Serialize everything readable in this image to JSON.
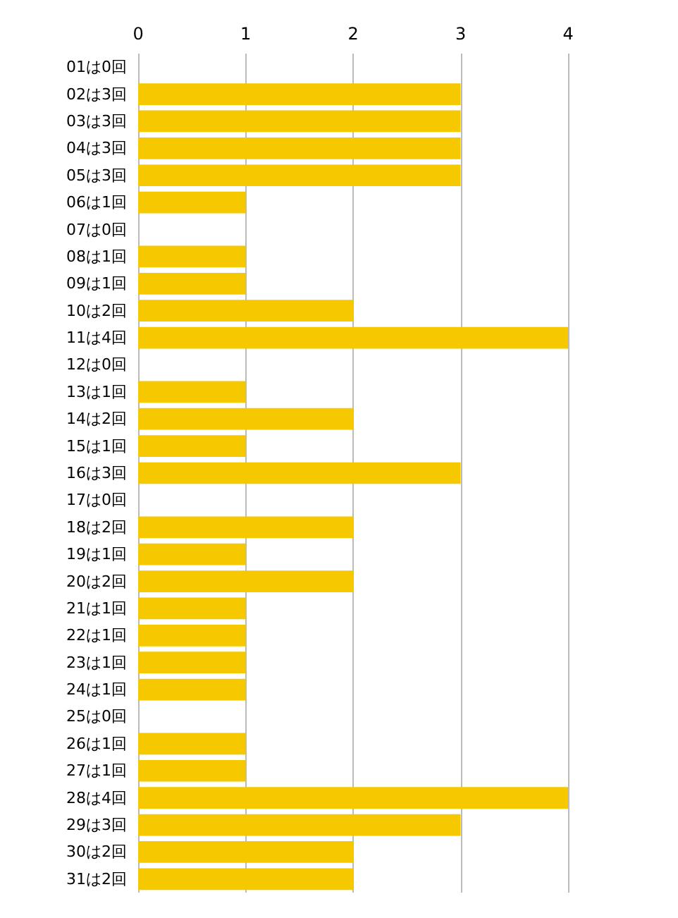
{
  "chart_data": {
    "type": "bar",
    "orientation": "horizontal",
    "categories": [
      "01は0回",
      "02は3回",
      "03は3回",
      "04は3回",
      "05は3回",
      "06は1回",
      "07は0回",
      "08は1回",
      "09は1回",
      "10は2回",
      "11は4回",
      "12は0回",
      "13は1回",
      "14は2回",
      "15は1回",
      "16は3回",
      "17は0回",
      "18は2回",
      "19は1回",
      "20は2回",
      "21は1回",
      "22は1回",
      "23は1回",
      "24は1回",
      "25は0回",
      "26は1回",
      "27は1回",
      "28は4回",
      "29は3回",
      "30は2回",
      "31は2回"
    ],
    "values": [
      0,
      3,
      3,
      3,
      3,
      1,
      0,
      1,
      1,
      2,
      4,
      0,
      1,
      2,
      1,
      3,
      0,
      2,
      1,
      2,
      1,
      1,
      1,
      1,
      0,
      1,
      1,
      4,
      3,
      2,
      2
    ],
    "color": "#f5c800",
    "xlim": [
      0,
      4
    ],
    "xticks": [
      0,
      1,
      2,
      3,
      4
    ],
    "grid": "x"
  }
}
